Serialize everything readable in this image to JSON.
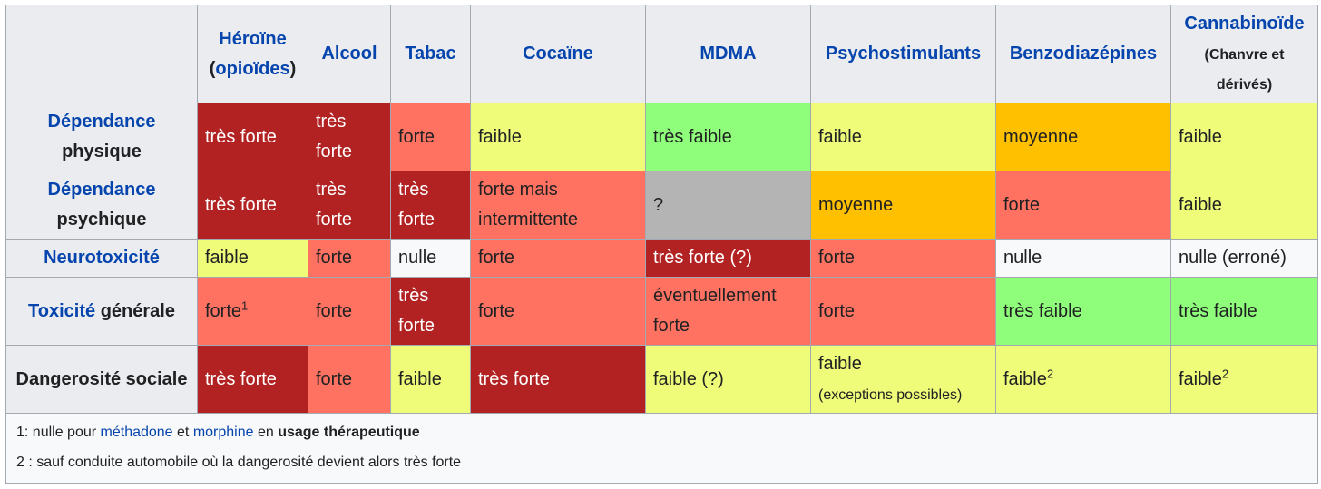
{
  "header": {
    "heroine": {
      "name": "Héroïne",
      "open": "(",
      "link": "opioïdes",
      "close": ")"
    },
    "alcool": "Alcool",
    "tabac": "Tabac",
    "cocaine": "Cocaïne",
    "mdma": "MDMA",
    "psychostimulants": "Psychostimulants",
    "benzo": "Benzodiazépines",
    "cannabis": {
      "name": "Cannabinoïde",
      "sub": "(Chanvre et dérivés)"
    }
  },
  "rows": {
    "dep_phys": {
      "label_link": "Dépendance",
      "label_rest": "physique",
      "cells": [
        "très forte",
        "très forte",
        "forte",
        "faible",
        "très faible",
        "faible",
        "moyenne",
        "faible"
      ]
    },
    "dep_psy": {
      "label_link": "Dépendance",
      "label_rest": "psychique",
      "cells": [
        "très forte",
        "très forte",
        "très forte",
        "forte mais intermittente",
        "?",
        "moyenne",
        "forte",
        "faible"
      ]
    },
    "neuro": {
      "label_link": "Neurotoxicité",
      "cells": [
        "faible",
        "forte",
        "nulle",
        "forte",
        "très forte (?)",
        "forte",
        "nulle",
        "nulle (erroné)"
      ]
    },
    "toxi": {
      "label_link": "Toxicité",
      "label_rest": "générale",
      "cells": [
        "forte",
        "forte",
        "très forte",
        "forte",
        "éventuellement forte",
        "forte",
        "très faible",
        "très faible"
      ],
      "heroine_sup": "1"
    },
    "danger": {
      "label": "Dangerosité sociale",
      "cells": [
        "très forte",
        "forte",
        "faible",
        "très forte",
        "faible (?)",
        "faible",
        "faible",
        "faible"
      ],
      "psycho_note": "(exceptions possibles)",
      "benzo_sup": "2",
      "cannabis_sup": "2"
    }
  },
  "notes": {
    "n1": {
      "prefix": "1: nulle pour ",
      "link1": "méthadone",
      "mid": " et ",
      "link2": "morphine",
      "en": " en ",
      "bold": "usage thérapeutique"
    },
    "n2": "2 : sauf conduite automobile où la dangerosité devient alors très forte"
  },
  "colors": {
    "tres_forte": "#b22222",
    "forte": "#ff7262",
    "faible": "#eefc79",
    "tres_faible": "#8ffe7b",
    "moyenne": "#ffc000",
    "inconnu": "#b4b4b4",
    "nulle": "#f8f9fa",
    "header_bg": "#eaecf0",
    "link": "#0645ad"
  }
}
